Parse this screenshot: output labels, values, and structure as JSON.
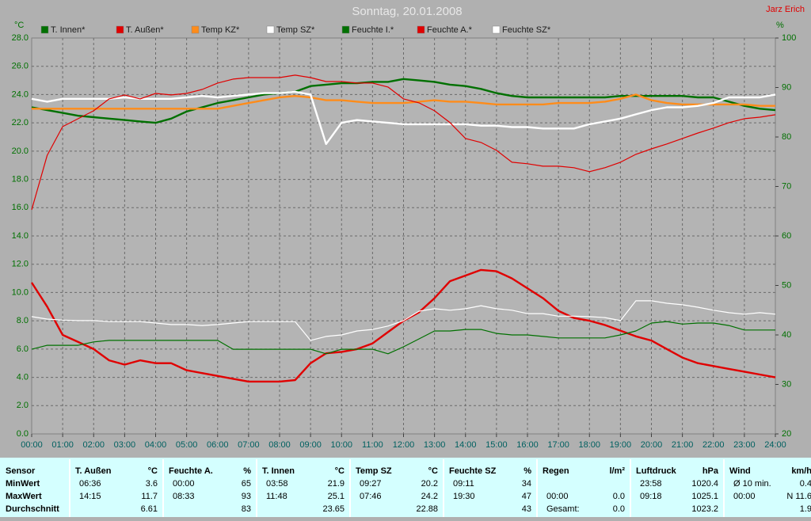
{
  "chart_data": {
    "type": "line",
    "title": "Sonntag, 20.01.2008",
    "author": "Jarz Erich",
    "y_label": "°C",
    "y2_label": "%",
    "x": [
      0,
      0.5,
      1,
      1.5,
      2,
      2.5,
      3,
      3.5,
      4,
      4.5,
      5,
      5.5,
      6,
      6.5,
      7,
      7.5,
      8,
      8.5,
      9,
      9.5,
      10,
      10.5,
      11,
      11.5,
      12,
      12.5,
      13,
      13.5,
      14,
      14.5,
      15,
      15.5,
      16,
      16.5,
      17,
      17.5,
      18,
      18.5,
      19,
      19.5,
      20,
      20.5,
      21,
      21.5,
      22,
      22.5,
      23,
      23.5,
      24
    ],
    "xlim": [
      0,
      24
    ],
    "xticks": [
      {
        "value": 0,
        "label": "00:00"
      },
      {
        "value": 1,
        "label": "01:00"
      },
      {
        "value": 2,
        "label": "02:00"
      },
      {
        "value": 3,
        "label": "03:00"
      },
      {
        "value": 4,
        "label": "04:00"
      },
      {
        "value": 5,
        "label": "05:00"
      },
      {
        "value": 6,
        "label": "06:00"
      },
      {
        "value": 7,
        "label": "07:00"
      },
      {
        "value": 8,
        "label": "08:00"
      },
      {
        "value": 9,
        "label": "09:00"
      },
      {
        "value": 10,
        "label": "10:00"
      },
      {
        "value": 11,
        "label": "11:00"
      },
      {
        "value": 12,
        "label": "12:00"
      },
      {
        "value": 13,
        "label": "13:00"
      },
      {
        "value": 14,
        "label": "14:00"
      },
      {
        "value": 15,
        "label": "15:00"
      },
      {
        "value": 16,
        "label": "16:00"
      },
      {
        "value": 17,
        "label": "17:00"
      },
      {
        "value": 18,
        "label": "18:00"
      },
      {
        "value": 19,
        "label": "19:00"
      },
      {
        "value": 20,
        "label": "20:00"
      },
      {
        "value": 21,
        "label": "21:00"
      },
      {
        "value": 22,
        "label": "22:00"
      },
      {
        "value": 23,
        "label": "23:00"
      },
      {
        "value": 24,
        "label": "24:00"
      }
    ],
    "ylim": [
      0,
      28
    ],
    "yticks": [
      {
        "value": 0,
        "label": "0.0"
      },
      {
        "value": 2,
        "label": "2.0"
      },
      {
        "value": 4,
        "label": "4.0"
      },
      {
        "value": 6,
        "label": "6.0"
      },
      {
        "value": 8,
        "label": "8.0"
      },
      {
        "value": 10,
        "label": "10.0"
      },
      {
        "value": 12,
        "label": "12.0"
      },
      {
        "value": 14,
        "label": "14.0"
      },
      {
        "value": 16,
        "label": "16.0"
      },
      {
        "value": 18,
        "label": "18.0"
      },
      {
        "value": 20,
        "label": "20.0"
      },
      {
        "value": 22,
        "label": "22.0"
      },
      {
        "value": 24,
        "label": "24.0"
      },
      {
        "value": 26,
        "label": "26.0"
      },
      {
        "value": 28,
        "label": "28.0"
      }
    ],
    "y2lim": [
      20,
      100
    ],
    "y2ticks": [
      20,
      30,
      40,
      50,
      60,
      70,
      80,
      90,
      100
    ],
    "grid": true,
    "series": [
      {
        "name": "T. Innen*",
        "color": "#007000",
        "values": [
          23.1,
          22.9,
          22.7,
          22.5,
          22.4,
          22.3,
          22.2,
          22.1,
          22.0,
          22.3,
          22.8,
          23.1,
          23.4,
          23.6,
          23.8,
          24.0,
          24.1,
          24.2,
          24.6,
          24.7,
          24.8,
          24.8,
          24.9,
          24.9,
          25.1,
          25.0,
          24.9,
          24.7,
          24.6,
          24.4,
          24.1,
          23.9,
          23.8,
          23.8,
          23.8,
          23.8,
          23.8,
          23.8,
          23.9,
          23.9,
          23.9,
          23.9,
          23.9,
          23.8,
          23.8,
          23.5,
          23.2,
          23.0,
          22.9
        ]
      },
      {
        "name": "T. Außen*",
        "color": "#e00000",
        "values": [
          10.7,
          9.0,
          7.0,
          6.5,
          6.0,
          5.2,
          4.9,
          5.2,
          5.0,
          5.0,
          4.5,
          4.3,
          4.1,
          3.9,
          3.7,
          3.7,
          3.7,
          3.8,
          5.0,
          5.7,
          5.8,
          6.0,
          6.4,
          7.2,
          8.0,
          8.6,
          9.6,
          10.8,
          11.2,
          11.6,
          11.5,
          11.0,
          10.3,
          9.6,
          8.7,
          8.2,
          8.0,
          7.7,
          7.3,
          6.9,
          6.6,
          6.0,
          5.4,
          5.0,
          4.8,
          4.6,
          4.4,
          4.2,
          4.0
        ]
      },
      {
        "name": "Temp KZ*",
        "color": "#ff8c1a",
        "values": [
          23.0,
          23.0,
          23.0,
          23.0,
          23.0,
          23.0,
          23.0,
          23.0,
          23.0,
          23.0,
          23.0,
          23.0,
          23.0,
          23.2,
          23.4,
          23.6,
          23.8,
          23.9,
          23.8,
          23.6,
          23.6,
          23.5,
          23.4,
          23.4,
          23.4,
          23.5,
          23.6,
          23.5,
          23.5,
          23.4,
          23.3,
          23.3,
          23.3,
          23.3,
          23.4,
          23.4,
          23.4,
          23.5,
          23.7,
          24.0,
          23.6,
          23.4,
          23.3,
          23.3,
          23.3,
          23.3,
          23.3,
          23.2,
          23.2
        ]
      },
      {
        "name": "Temp SZ*",
        "color": "#ffffff",
        "values": [
          23.7,
          23.5,
          23.7,
          23.7,
          23.7,
          23.7,
          23.8,
          23.7,
          23.7,
          23.7,
          23.8,
          23.9,
          23.8,
          23.9,
          24.0,
          24.1,
          24.1,
          24.2,
          24.0,
          20.5,
          22.0,
          22.2,
          22.1,
          22.0,
          21.9,
          21.9,
          21.9,
          21.9,
          21.9,
          21.8,
          21.8,
          21.7,
          21.7,
          21.6,
          21.6,
          21.6,
          21.9,
          22.1,
          22.3,
          22.6,
          22.9,
          23.1,
          23.1,
          23.2,
          23.4,
          23.8,
          23.8,
          23.8,
          24.0
        ]
      },
      {
        "name": "Feuchte I.*",
        "color": "#007000",
        "axis": "y2",
        "values": [
          37.1,
          37.9,
          37.9,
          37.9,
          38.6,
          38.9,
          38.9,
          38.9,
          38.9,
          38.9,
          38.9,
          38.9,
          38.9,
          37.1,
          37.1,
          37.1,
          37.1,
          37.1,
          37.1,
          36.2,
          37.1,
          37.1,
          37.1,
          36.2,
          37.6,
          39.2,
          40.8,
          40.8,
          41.1,
          41.1,
          40.3,
          40.0,
          40.0,
          39.7,
          39.4,
          39.4,
          39.4,
          39.4,
          40.0,
          40.8,
          42.4,
          42.7,
          42.2,
          42.4,
          42.4,
          41.9,
          41.0,
          41.0,
          41.0
        ]
      },
      {
        "name": "Feuchte A.*",
        "color": "#e00000",
        "axis": "y2",
        "values": [
          65.3,
          76.3,
          82.1,
          83.7,
          85.3,
          87.7,
          88.5,
          87.7,
          88.8,
          88.5,
          88.8,
          89.6,
          90.9,
          91.7,
          92.0,
          92.0,
          92.0,
          92.5,
          92.0,
          91.2,
          91.2,
          90.9,
          90.9,
          90.1,
          87.7,
          86.9,
          85.3,
          82.9,
          79.7,
          78.9,
          77.3,
          74.9,
          74.6,
          74.1,
          74.1,
          73.8,
          73.0,
          73.8,
          74.9,
          76.5,
          77.6,
          78.6,
          79.7,
          80.8,
          81.8,
          82.9,
          83.7,
          84.0,
          84.5
        ]
      },
      {
        "name": "Feuchte SZ*",
        "color": "#ffffff",
        "axis": "y2",
        "values": [
          43.7,
          43.2,
          43.0,
          42.9,
          42.9,
          42.7,
          42.7,
          42.7,
          42.4,
          42.1,
          42.1,
          41.9,
          42.1,
          42.4,
          42.7,
          42.7,
          42.7,
          42.7,
          38.9,
          39.7,
          40.0,
          40.8,
          41.1,
          41.8,
          42.9,
          44.8,
          45.3,
          45.0,
          45.3,
          45.9,
          45.3,
          45.0,
          44.3,
          44.3,
          43.8,
          43.8,
          43.7,
          43.5,
          42.9,
          46.9,
          46.9,
          46.4,
          46.1,
          45.6,
          45.0,
          44.5,
          44.2,
          44.5,
          44.2
        ]
      }
    ]
  },
  "stats_table": {
    "sensor": {
      "header": "Sensor",
      "rows": [
        "MinWert",
        "MaxWert",
        "Durchschnitt"
      ]
    },
    "columns": [
      {
        "header": "T. Außen",
        "unit": "°C",
        "rows": [
          {
            "time": "06:36",
            "value": "3.6"
          },
          {
            "time": "14:15",
            "value": "11.7"
          },
          {
            "value": "6.61"
          }
        ]
      },
      {
        "header": "Feuchte A.",
        "unit": "%",
        "rows": [
          {
            "time": "00:00",
            "value": "65"
          },
          {
            "time": "08:33",
            "value": "93"
          },
          {
            "value": "83"
          }
        ]
      },
      {
        "header": "T. Innen",
        "unit": "°C",
        "rows": [
          {
            "time": "03:58",
            "value": "21.9"
          },
          {
            "time": "11:48",
            "value": "25.1"
          },
          {
            "value": "23.65"
          }
        ]
      },
      {
        "header": "Temp SZ",
        "unit": "°C",
        "rows": [
          {
            "time": "09:27",
            "value": "20.2"
          },
          {
            "time": "07:46",
            "value": "24.2"
          },
          {
            "value": "22.88"
          }
        ]
      },
      {
        "header": "Feuchte SZ",
        "unit": "%",
        "rows": [
          {
            "time": "09:11",
            "value": "34"
          },
          {
            "time": "19:30",
            "value": "47"
          },
          {
            "value": "43"
          }
        ]
      },
      {
        "header": "Regen",
        "unit": "l/m²",
        "rows": [
          null,
          {
            "time": "00:00",
            "value": "0.0"
          },
          {
            "time": "Gesamt:",
            "value": "0.0"
          }
        ]
      },
      {
        "header": "Luftdruck",
        "unit": "hPa",
        "rows": [
          {
            "time": "23:58",
            "value": "1020.4"
          },
          {
            "time": "09:18",
            "value": "1025.1"
          },
          {
            "value": "1023.2"
          }
        ]
      },
      {
        "header": "Wind",
        "unit": "km/h",
        "rows": [
          {
            "time": "Ø 10 min.",
            "value": "0.4"
          },
          {
            "time": "00:00",
            "value": "N 11.6"
          },
          {
            "value": "1.9"
          }
        ]
      }
    ]
  }
}
